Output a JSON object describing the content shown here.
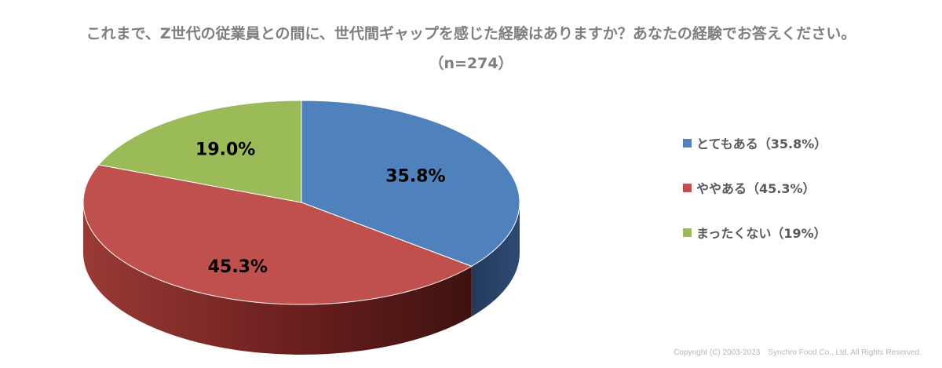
{
  "title": "これまで、Z世代の従業員との間に、世代間ギャップを感じた経験はありますか？あなたの経験でお答えください。",
  "subtitle": "（n=274）",
  "chart_data": {
    "type": "pie",
    "categories": [
      "とてもある",
      "ややある",
      "まったくない"
    ],
    "values": [
      35.8,
      45.3,
      19.0
    ],
    "data_labels": [
      "35.8%",
      "45.3%",
      "19.0%"
    ],
    "colors": [
      "#4f81bd",
      "#c0504d",
      "#9bbb59"
    ],
    "legend_position": "right",
    "style": "3d"
  },
  "legend": {
    "items": [
      {
        "label": "とてもある（35.8%）",
        "color": "#4f81bd"
      },
      {
        "label": "ややある（45.3%）",
        "color": "#c0504d"
      },
      {
        "label": "まったくない（19%）",
        "color": "#9bbb59"
      }
    ]
  },
  "copyright": "Copyright (C) 2003-2023　Synchro Food Co., Ltd. All Rights Reserved."
}
